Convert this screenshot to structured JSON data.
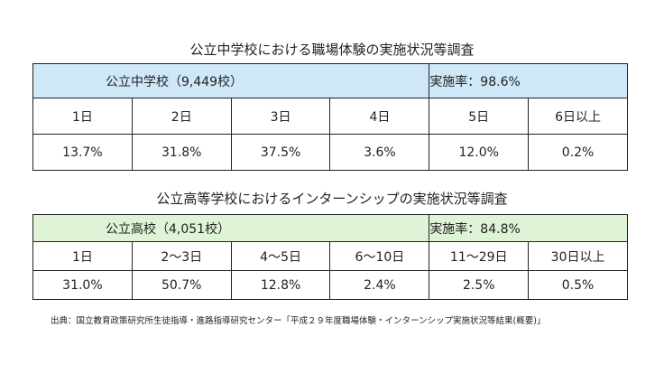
{
  "survey1": {
    "title": "公立中学校における職場体験の実施状況等調査",
    "school_label": "公立中学校（9,449校）",
    "rate_label": "実施率：98.6%",
    "columns": [
      "1日",
      "2日",
      "3日",
      "4日",
      "5日",
      "6日以上"
    ],
    "values": [
      "13.7%",
      "31.8%",
      "37.5%",
      "3.6%",
      "12.0%",
      "0.2%"
    ]
  },
  "survey2": {
    "title": "公立高等学校におけるインターンシップの実施状況等調査",
    "school_label": "公立高校（4,051校）",
    "rate_label": "実施率：84.8%",
    "columns": [
      "1日",
      "2～3日",
      "4～5日",
      "6～10日",
      "11～29日",
      "30日以上"
    ],
    "values": [
      "31.0%",
      "50.7%",
      "12.8%",
      "2.4%",
      "2.5%",
      "0.5%"
    ]
  },
  "source": "出典：国立教育政策研究所生徒指導・進路指導研究センター「平成２９年度職場体験・インターンシップ実施状況等結果(概要)」",
  "colors": {
    "survey1_header_bg": "#cfe8f8",
    "survey2_header_bg": "#dff3d6",
    "border": "#222222"
  }
}
